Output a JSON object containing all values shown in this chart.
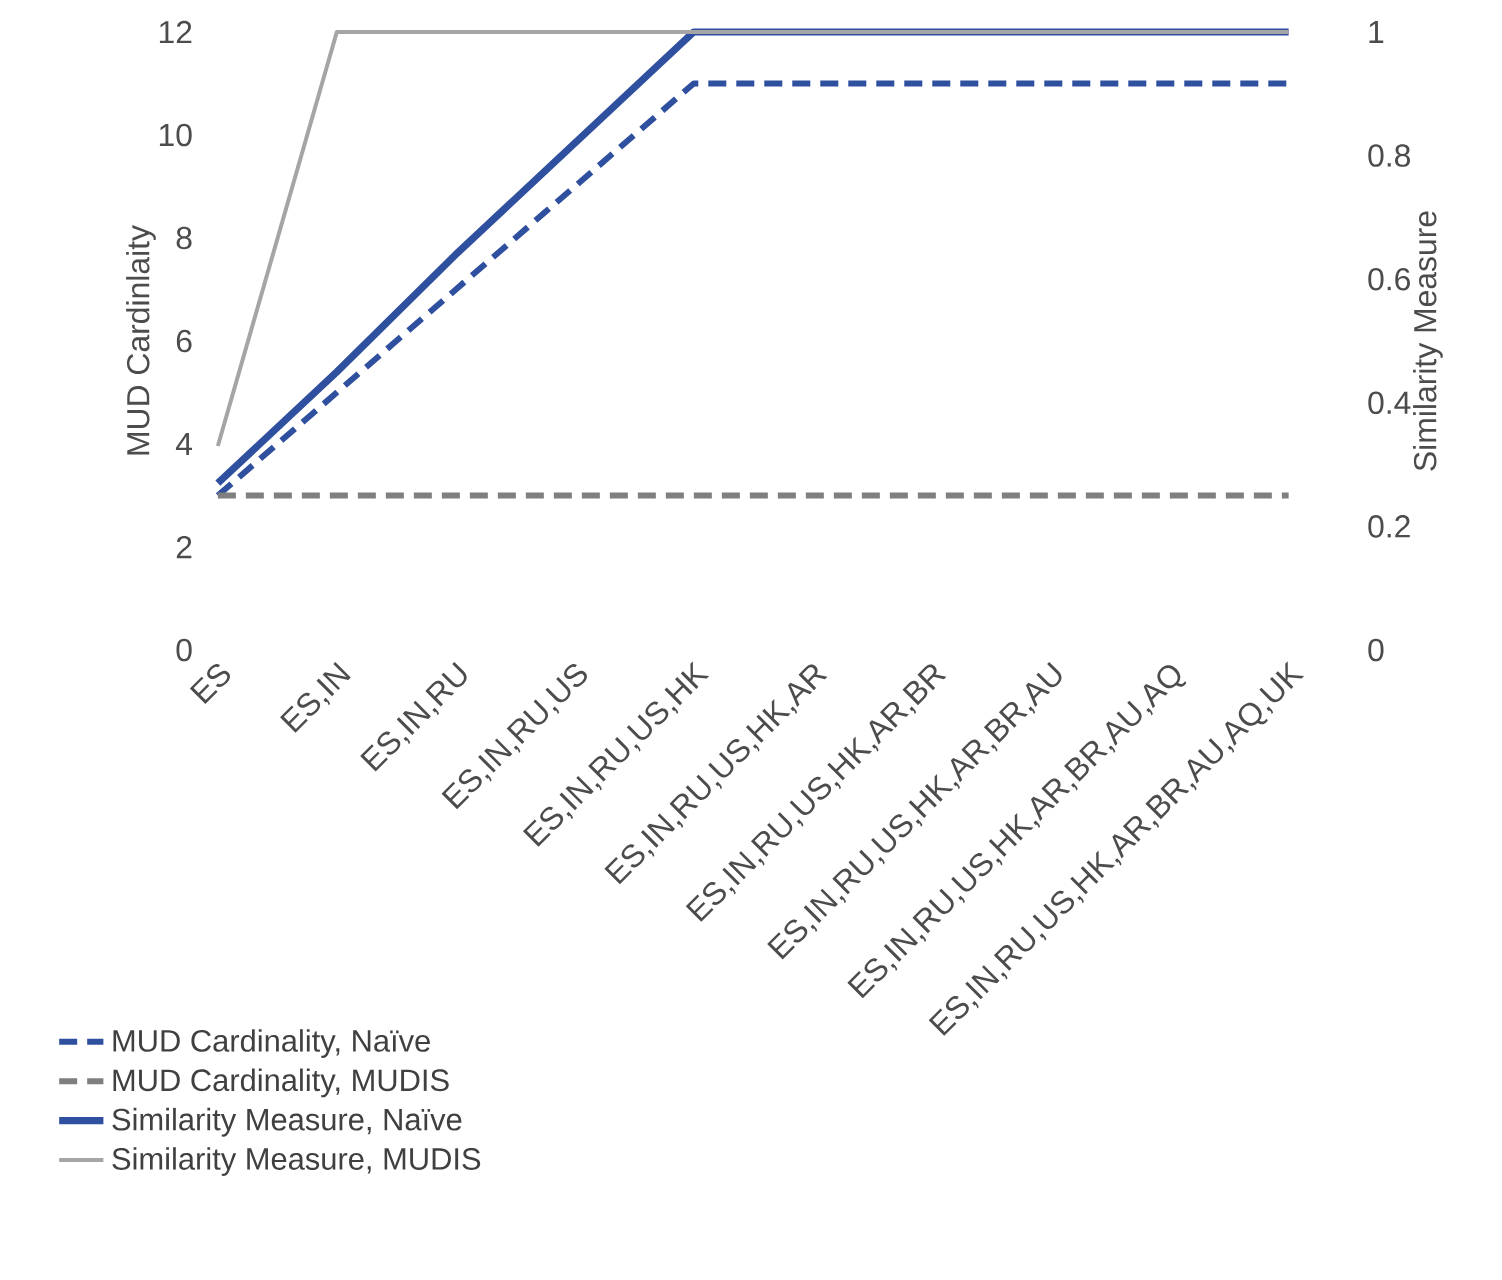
{
  "chart_data": {
    "type": "line",
    "ylabel": "MUD Cardinlaity",
    "y2label": "Similarity Measure",
    "categories": [
      "ES",
      "ES,IN",
      "ES,IN,RU",
      "ES,IN,RU,US",
      "ES,IN,RU,US,HK",
      "ES,IN,RU,US,HK,AR",
      "ES,IN,RU,US,HK,AR,BR",
      "ES,IN,RU,US,HK,AR,BR,AU",
      "ES,IN,RU,US,HK,AR,BR,AU,AQ",
      "ES,IN,RU,US,HK,AR,BR,AU,AQ,UK"
    ],
    "ylim": [
      0,
      12
    ],
    "yticks": [
      0,
      2,
      4,
      6,
      8,
      10,
      12
    ],
    "y2lim": [
      0,
      1
    ],
    "y2ticks": [
      0,
      {
        "value": 0.2,
        "label": "0.2"
      },
      {
        "value": 0.4,
        "label": "0.4"
      },
      {
        "value": 0.6,
        "label": "0.6"
      },
      {
        "value": 0.8,
        "label": "0.8"
      },
      1
    ],
    "legend": "bottom left",
    "grid": false,
    "series": [
      {
        "name": "MUD Cardinality, Naïve",
        "color": "#2f4f9f",
        "line_style": "dashed",
        "values": [
          3,
          5,
          7,
          9,
          11,
          11,
          11,
          11,
          11,
          11
        ]
      },
      {
        "name": "MUD Cardinality, MUDIS",
        "color": "#7f7f7f",
        "line_style": "dashed",
        "values": [
          3,
          3,
          3,
          3,
          3,
          3,
          3,
          3,
          3,
          3
        ]
      },
      {
        "name": "Similarity Measure, Naïve",
        "color": "#2f4f9f",
        "line_style": "solid",
        "axis": "y2",
        "values": [
          0.27,
          0.45,
          0.64,
          0.82,
          1,
          1,
          1,
          1,
          1,
          1
        ]
      },
      {
        "name": "Similarity Measure, MUDIS",
        "color": "#a5a5a5",
        "line_style": "solid",
        "axis": "y2",
        "values": [
          0.33,
          1,
          1,
          1,
          1,
          1,
          1,
          1,
          1,
          1
        ]
      }
    ]
  }
}
